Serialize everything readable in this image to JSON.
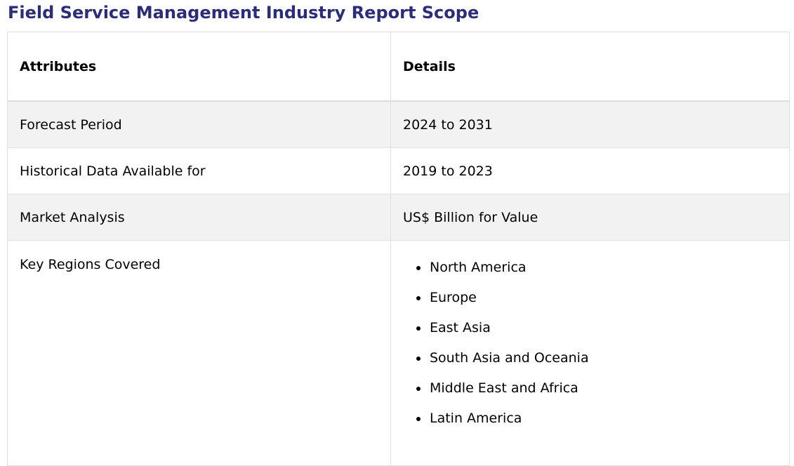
{
  "page": {
    "title": "Field Service Management Industry Report Scope"
  },
  "table": {
    "headers": [
      "Attributes",
      "Details"
    ],
    "rows": [
      {
        "attribute": "Forecast Period",
        "detail": "2024 to 2031"
      },
      {
        "attribute": "Historical Data Available for",
        "detail": "2019 to 2023"
      },
      {
        "attribute": "Market Analysis",
        "detail": "US$ Billion for Value"
      }
    ],
    "regions": {
      "attribute": "Key Regions Covered",
      "items": [
        "North America",
        "Europe",
        "East Asia",
        "South Asia and Oceania",
        "Middle East and Africa",
        "Latin America"
      ]
    }
  },
  "colors": {
    "heading": "#2b2d7a",
    "row_shade": "#f2f2f2",
    "border": "#e0e0e0"
  }
}
